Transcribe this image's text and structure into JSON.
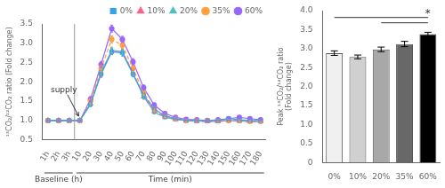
{
  "chart_data": [
    {
      "type": "line",
      "ylabel": "¹³CO₂/¹²CO₂ ratio (Fold change)",
      "categories": [
        "1h",
        "2h",
        "3h",
        "10",
        "20",
        "30",
        "40",
        "50",
        "60",
        "70",
        "80",
        "90",
        "100",
        "110",
        "120",
        "130",
        "140",
        "150",
        "160",
        "170",
        "180"
      ],
      "series": [
        {
          "name": "0%",
          "marker": "square",
          "line_style": "solid",
          "values": [
            1.0,
            1.0,
            1.0,
            1.0,
            1.42,
            2.2,
            2.78,
            2.75,
            2.2,
            1.65,
            1.3,
            1.12,
            1.05,
            1.0,
            1.0,
            1.0,
            1.0,
            1.05,
            1.02,
            1.0,
            1.0
          ],
          "errors": [
            0.02,
            0.02,
            0.02,
            0.02,
            0.06,
            0.08,
            0.07,
            0.08,
            0.07,
            0.07,
            0.06,
            0.04,
            0.03,
            0.03,
            0.03,
            0.03,
            0.03,
            0.04,
            0.03,
            0.03,
            0.02
          ]
        },
        {
          "name": "10%",
          "marker": "triangle",
          "line_style": "dashed",
          "values": [
            1.0,
            1.0,
            1.0,
            1.0,
            1.45,
            2.22,
            2.8,
            2.78,
            2.25,
            1.62,
            1.25,
            1.1,
            1.03,
            1.0,
            0.98,
            0.97,
            0.98,
            1.0,
            0.99,
            0.97,
            0.98
          ],
          "errors": [
            0.02,
            0.02,
            0.02,
            0.02,
            0.06,
            0.08,
            0.07,
            0.07,
            0.07,
            0.07,
            0.05,
            0.04,
            0.03,
            0.03,
            0.03,
            0.03,
            0.03,
            0.03,
            0.03,
            0.03,
            0.02
          ]
        },
        {
          "name": "20%",
          "marker": "triangle",
          "line_style": "solid",
          "values": [
            1.0,
            1.0,
            1.0,
            1.0,
            1.43,
            2.25,
            2.82,
            2.78,
            2.22,
            1.62,
            1.22,
            1.08,
            1.03,
            1.0,
            0.99,
            0.98,
            0.98,
            1.0,
            0.99,
            0.97,
            0.97
          ],
          "errors": [
            0.02,
            0.02,
            0.02,
            0.02,
            0.06,
            0.07,
            0.08,
            0.07,
            0.06,
            0.06,
            0.05,
            0.04,
            0.03,
            0.03,
            0.03,
            0.03,
            0.03,
            0.03,
            0.03,
            0.03,
            0.02
          ]
        },
        {
          "name": "35%",
          "marker": "circle",
          "line_style": "dashed",
          "values": [
            1.0,
            1.0,
            1.0,
            1.0,
            1.5,
            2.35,
            3.1,
            2.95,
            2.35,
            1.72,
            1.3,
            1.12,
            1.05,
            1.0,
            1.0,
            1.0,
            1.0,
            1.0,
            1.0,
            0.98,
            0.98
          ],
          "errors": [
            0.02,
            0.02,
            0.02,
            0.02,
            0.07,
            0.08,
            0.09,
            0.08,
            0.08,
            0.07,
            0.06,
            0.04,
            0.04,
            0.03,
            0.03,
            0.03,
            0.03,
            0.03,
            0.03,
            0.03,
            0.02
          ]
        },
        {
          "name": "60%",
          "marker": "circle",
          "line_style": "solid",
          "values": [
            1.0,
            1.0,
            1.0,
            1.0,
            1.55,
            2.45,
            3.38,
            3.1,
            2.52,
            1.85,
            1.4,
            1.18,
            1.08,
            1.03,
            1.02,
            1.0,
            1.02,
            1.05,
            1.08,
            1.05,
            1.02
          ],
          "errors": [
            0.02,
            0.02,
            0.02,
            0.02,
            0.07,
            0.08,
            0.09,
            0.08,
            0.08,
            0.07,
            0.06,
            0.04,
            0.04,
            0.03,
            0.03,
            0.03,
            0.03,
            0.04,
            0.04,
            0.03,
            0.03
          ]
        }
      ],
      "ylim": [
        0.5,
        3.5
      ],
      "yticks": [
        0.5,
        {
          "value": 1,
          "label": "1.0"
        },
        1.5,
        {
          "value": 2,
          "label": "2.0"
        },
        2.5,
        {
          "value": 3,
          "label": "3.0"
        },
        3.5
      ],
      "grid": false,
      "legend": "upper right",
      "annotations": [
        {
          "text": "supply",
          "category": "10",
          "y": 1.05
        }
      ],
      "category_groups": [
        {
          "label": "Baseline (h)",
          "from": "1h",
          "to": "3h"
        },
        {
          "label": "Time (min)",
          "from": "10",
          "to": "180"
        }
      ]
    },
    {
      "type": "bar",
      "ylabel": "Peak ¹³CO₂/¹²CO₂ ratio\n(Fold change)",
      "categories": [
        "0%",
        "10%",
        "20%",
        "35%",
        "60%"
      ],
      "values": [
        2.88,
        2.78,
        2.98,
        3.12,
        3.38
      ],
      "errors": [
        0.06,
        0.05,
        0.06,
        0.07,
        0.05
      ],
      "colors": [
        "#f0f0f0",
        "#d0d0d0",
        "#a8a8a8",
        "#686868",
        "#000000"
      ],
      "ylim": [
        0,
        4
      ],
      "yticks": [
        0,
        0.5,
        {
          "value": 1,
          "label": "1.0"
        },
        1.5,
        {
          "value": 2,
          "label": "2.0"
        },
        2.5,
        {
          "value": 3,
          "label": "3.0"
        },
        3.5,
        {
          "value": 4,
          "label": "4.0"
        }
      ],
      "grid": false,
      "significance": {
        "brackets": [
          {
            "from": "0%",
            "to": "60%",
            "y": 3.82
          },
          {
            "from": "20%",
            "to": "60%",
            "y": 3.68
          }
        ],
        "text": "*",
        "category": "60%",
        "y": 3.9
      }
    }
  ]
}
